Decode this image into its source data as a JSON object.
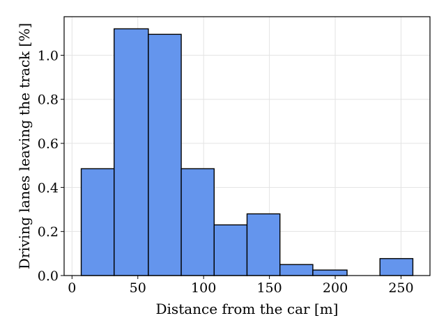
{
  "chart_data": {
    "type": "bar",
    "bins": [
      {
        "x0": 7,
        "x1": 32,
        "value": 0.485
      },
      {
        "x0": 32,
        "x1": 58,
        "value": 1.12
      },
      {
        "x0": 58,
        "x1": 83,
        "value": 1.095
      },
      {
        "x0": 83,
        "x1": 108,
        "value": 0.485
      },
      {
        "x0": 108,
        "x1": 133,
        "value": 0.23
      },
      {
        "x0": 133,
        "x1": 158,
        "value": 0.28
      },
      {
        "x0": 158,
        "x1": 183,
        "value": 0.05
      },
      {
        "x0": 183,
        "x1": 209,
        "value": 0.025
      },
      {
        "x0": 209,
        "x1": 234,
        "value": 0.0
      },
      {
        "x0": 234,
        "x1": 259,
        "value": 0.077
      }
    ],
    "xlabel": "Distance from the car [m]",
    "ylabel": "Driving lanes leaving the track [%]",
    "xlim": [
      -6,
      272
    ],
    "ylim": [
      0,
      1.175
    ],
    "xticks": [
      0,
      50,
      100,
      150,
      200,
      250
    ],
    "xtick_labels": [
      "0",
      "50",
      "100",
      "150",
      "200",
      "250"
    ],
    "yticks": [
      0.0,
      0.2,
      0.4,
      0.6,
      0.8,
      1.0
    ],
    "ytick_labels": [
      "0.0",
      "0.2",
      "0.4",
      "0.6",
      "0.8",
      "1.0"
    ],
    "grid": true,
    "bar_color": "#6495ed",
    "edge_color": "#000000"
  }
}
